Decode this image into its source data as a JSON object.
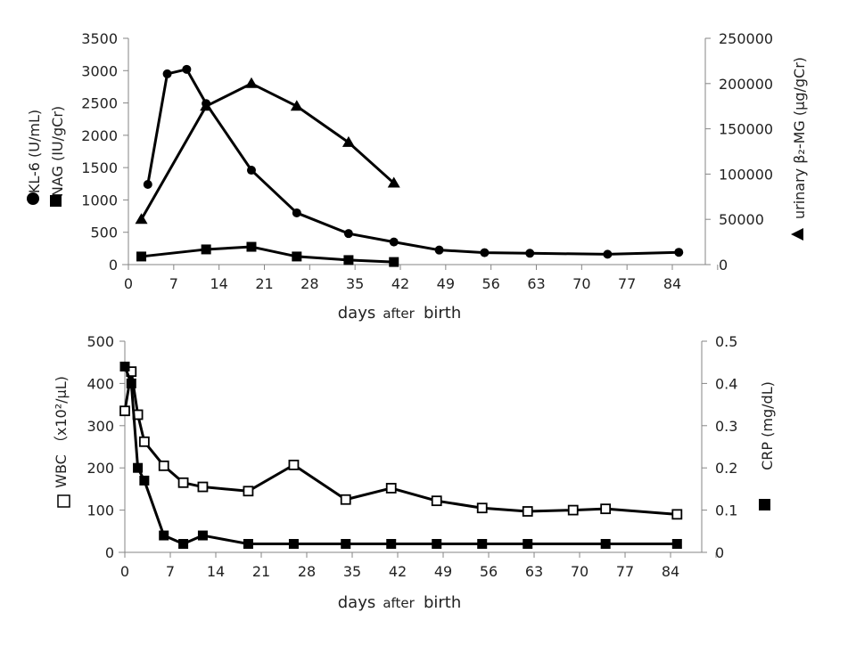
{
  "chart_data": [
    {
      "type": "line",
      "xlabel_parts": [
        "days",
        "after",
        "birth"
      ],
      "x_ticks": [
        "0",
        "7",
        "14",
        "21",
        "28",
        "35",
        "42",
        "49",
        "56",
        "63",
        "70",
        "77",
        "84"
      ],
      "xlim": [
        0,
        91
      ],
      "y_left": {
        "ticks": [
          "0",
          "500",
          "1000",
          "1500",
          "2000",
          "2500",
          "3000",
          "3500"
        ],
        "ylim": [
          0,
          3500
        ],
        "label_kl6": "KL-6 (U/mL)",
        "label_nag": "NAG (IU/gCr)",
        "legend_kl6_symbol": "●",
        "legend_nag_symbol": "■"
      },
      "y_right": {
        "ticks": [
          "0",
          "50000",
          "100000",
          "150000",
          "200000",
          "250000"
        ],
        "ylim": [
          0,
          250000
        ],
        "label": "urinary β₂-MG (μg/gCr)",
        "legend_symbol": "▲"
      },
      "series": [
        {
          "name": "KL-6",
          "axis": "left",
          "marker": "circle",
          "x": [
            3,
            6,
            9,
            12,
            19,
            26,
            34,
            41,
            48,
            55,
            62,
            74,
            85
          ],
          "y": [
            1240,
            2950,
            3020,
            2490,
            1460,
            800,
            480,
            350,
            225,
            185,
            175,
            160,
            190
          ]
        },
        {
          "name": "NAG",
          "axis": "left",
          "marker": "square",
          "x": [
            2,
            12,
            19,
            26,
            34,
            41
          ],
          "y": [
            125,
            235,
            275,
            125,
            70,
            40
          ]
        },
        {
          "name": "urinary β2-MG",
          "axis": "right",
          "marker": "triangle",
          "x": [
            2,
            12,
            19,
            26,
            34,
            41
          ],
          "y": [
            50000,
            175000,
            200000,
            175000,
            135000,
            90000
          ]
        }
      ],
      "grid": false
    },
    {
      "type": "line",
      "xlabel_parts": [
        "days",
        "after",
        "birth"
      ],
      "x_ticks": [
        "0",
        "7",
        "14",
        "21",
        "28",
        "35",
        "42",
        "49",
        "56",
        "63",
        "70",
        "77",
        "84"
      ],
      "xlim": [
        0,
        91
      ],
      "y_left": {
        "ticks": [
          "0",
          "100",
          "200",
          "300",
          "400",
          "500"
        ],
        "ylim": [
          0,
          500
        ],
        "label": "WBC （x10²/μL)",
        "legend_symbol": "□"
      },
      "y_right": {
        "ticks": [
          "0",
          "0.1",
          "0.2",
          "0.3",
          "0.4",
          "0.5"
        ],
        "ylim": [
          0,
          0.5
        ],
        "label": "CRP (mg/dL)",
        "legend_symbol": "■"
      },
      "series": [
        {
          "name": "WBC",
          "axis": "left",
          "marker": "open-square",
          "x": [
            0,
            1,
            2,
            3,
            6,
            9,
            12,
            19,
            26,
            34,
            41,
            48,
            55,
            62,
            69,
            74,
            85
          ],
          "y": [
            335,
            428,
            326,
            262,
            205,
            165,
            155,
            145,
            207,
            125,
            152,
            122,
            105,
            97,
            100,
            103,
            90
          ]
        },
        {
          "name": "CRP",
          "axis": "right",
          "marker": "square",
          "x": [
            0,
            1,
            2,
            3,
            6,
            9,
            12,
            19,
            26,
            34,
            41,
            48,
            55,
            62,
            74,
            85
          ],
          "y": [
            0.44,
            0.4,
            0.2,
            0.17,
            0.04,
            0.02,
            0.04,
            0.02,
            0.02,
            0.02,
            0.02,
            0.02,
            0.02,
            0.02,
            0.02,
            0.02
          ]
        }
      ],
      "grid": false
    }
  ]
}
